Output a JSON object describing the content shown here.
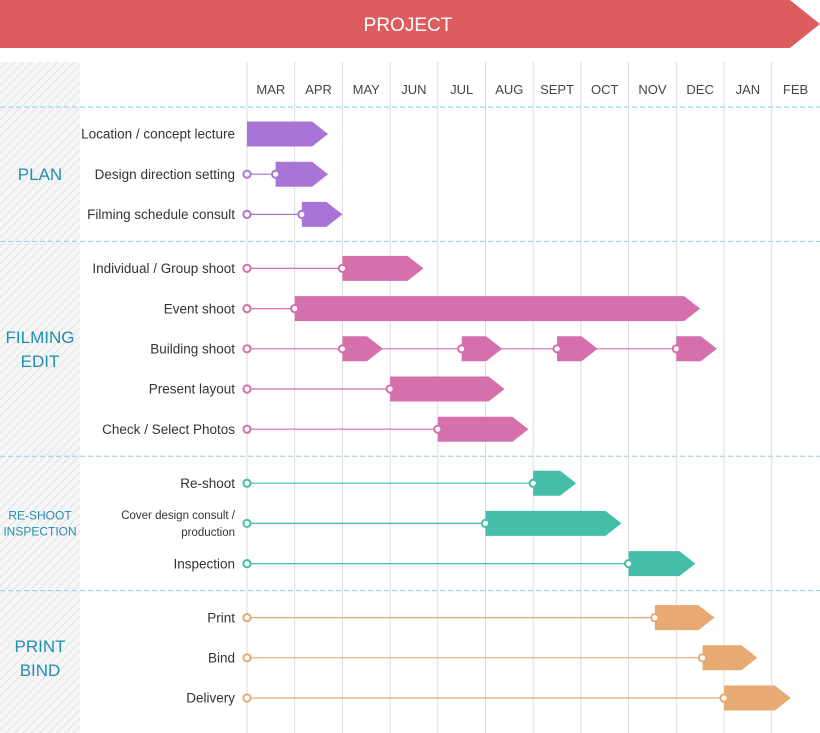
{
  "header": {
    "title": "PROJECT"
  },
  "colors": {
    "header_bg": "#dd5d5f",
    "plan": "#a874d6",
    "filming": "#d570ad",
    "reshoot": "#44bea8",
    "print": "#e6aa72",
    "section_label": "#1f8fb0",
    "text": "#333333",
    "grid": "#dddddd",
    "section_divider": "#8fcfdb"
  },
  "chart_data": {
    "type": "gantt",
    "months": [
      "MAR",
      "APR",
      "MAY",
      "JUN",
      "JUL",
      "AUG",
      "SEPT",
      "OCT",
      "NOV",
      "DEC",
      "JAN",
      "FEB"
    ],
    "sections": [
      {
        "name": "PLAN",
        "color_key": "plan",
        "tasks": [
          {
            "name": "Location / concept lecture",
            "segments": [
              [
                0,
                1.7
              ]
            ]
          },
          {
            "name": "Design direction setting",
            "segments": [
              [
                0.6,
                1.7
              ]
            ]
          },
          {
            "name": "Filming schedule consult",
            "segments": [
              [
                1.15,
                2.0
              ]
            ]
          }
        ]
      },
      {
        "name": "FILMING\nEDIT",
        "color_key": "filming",
        "tasks": [
          {
            "name": "Individual / Group shoot",
            "segments": [
              [
                2.0,
                3.7
              ]
            ]
          },
          {
            "name": "Event shoot",
            "segments": [
              [
                1.0,
                9.5
              ]
            ]
          },
          {
            "name": "Building shoot",
            "segments": [
              [
                2.0,
                2.85
              ],
              [
                4.5,
                5.35
              ],
              [
                6.5,
                7.35
              ],
              [
                9.0,
                9.85
              ]
            ]
          },
          {
            "name": "Present layout",
            "segments": [
              [
                3.0,
                5.4
              ]
            ]
          },
          {
            "name": "Check / Select Photos",
            "segments": [
              [
                4.0,
                5.9
              ]
            ]
          }
        ]
      },
      {
        "name": "RE-SHOOT\nINSPECTION",
        "color_key": "reshoot",
        "tasks": [
          {
            "name": "Re-shoot",
            "segments": [
              [
                6.0,
                6.9
              ]
            ]
          },
          {
            "name": "Cover design consult /\nproduction",
            "segments": [
              [
                5.0,
                7.85
              ]
            ]
          },
          {
            "name": "Inspection",
            "segments": [
              [
                8.0,
                9.4
              ]
            ]
          }
        ]
      },
      {
        "name": "PRINT\nBIND",
        "color_key": "print",
        "tasks": [
          {
            "name": "Print",
            "segments": [
              [
                8.55,
                9.8
              ]
            ]
          },
          {
            "name": "Bind",
            "segments": [
              [
                9.55,
                10.7
              ]
            ]
          },
          {
            "name": "Delivery",
            "segments": [
              [
                10.0,
                11.4
              ]
            ]
          }
        ]
      }
    ]
  }
}
